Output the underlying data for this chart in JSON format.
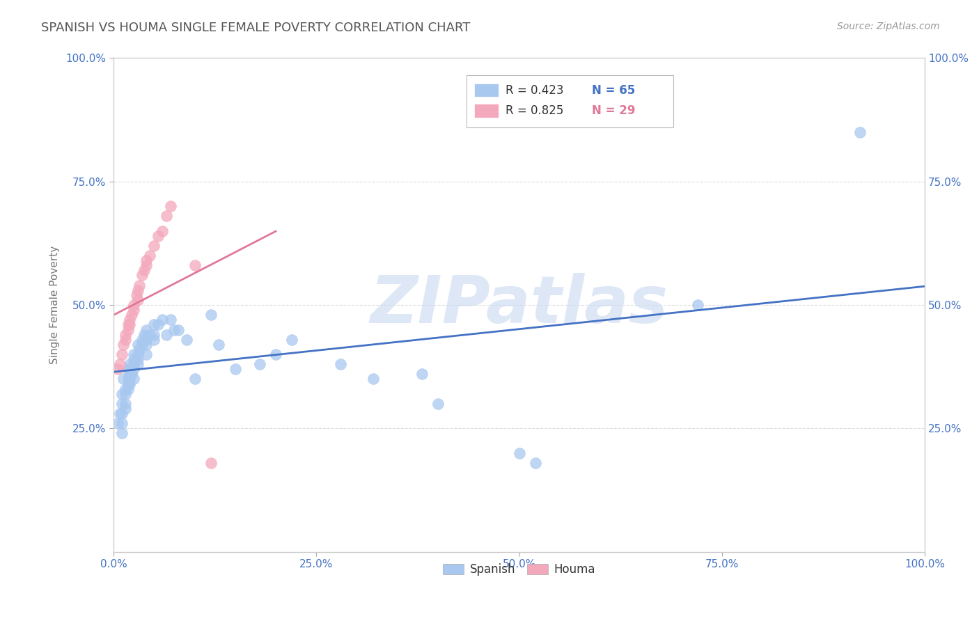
{
  "title": "SPANISH VS HOUMA SINGLE FEMALE POVERTY CORRELATION CHART",
  "source": "Source: ZipAtlas.com",
  "ylabel": "Single Female Poverty",
  "xlim": [
    0,
    1.0
  ],
  "ylim": [
    0,
    1.0
  ],
  "xticks": [
    0.0,
    0.25,
    0.5,
    0.75,
    1.0
  ],
  "yticks": [
    0.25,
    0.5,
    0.75,
    1.0
  ],
  "xtick_labels": [
    "0.0%",
    "25.0%",
    "50.0%",
    "75.0%",
    "100.0%"
  ],
  "ytick_labels": [
    "25.0%",
    "50.0%",
    "75.0%",
    "100.0%"
  ],
  "right_yticks": [
    0.0,
    0.25,
    0.5,
    0.75,
    1.0
  ],
  "right_ytick_labels": [
    "",
    "25.0%",
    "50.0%",
    "75.0%",
    "100.0%"
  ],
  "spanish_color": "#a8c8f0",
  "houma_color": "#f4a8bc",
  "spanish_line_color": "#4472c4",
  "houma_line_color": "#e07898",
  "watermark": "ZIPatlas",
  "watermark_color": "#c8d8f0",
  "legend_r_spanish": "R = 0.423",
  "legend_n_spanish": "N = 65",
  "legend_r_houma": "R = 0.825",
  "legend_n_houma": "N = 29",
  "spanish_x": [
    0.005,
    0.008,
    0.01,
    0.01,
    0.01,
    0.01,
    0.01,
    0.012,
    0.015,
    0.015,
    0.015,
    0.015,
    0.018,
    0.018,
    0.018,
    0.018,
    0.02,
    0.02,
    0.02,
    0.02,
    0.02,
    0.022,
    0.025,
    0.025,
    0.025,
    0.025,
    0.025,
    0.03,
    0.03,
    0.03,
    0.03,
    0.032,
    0.035,
    0.035,
    0.038,
    0.04,
    0.04,
    0.04,
    0.04,
    0.045,
    0.05,
    0.05,
    0.05,
    0.055,
    0.06,
    0.065,
    0.07,
    0.075,
    0.08,
    0.09,
    0.1,
    0.12,
    0.13,
    0.15,
    0.18,
    0.2,
    0.22,
    0.28,
    0.32,
    0.38,
    0.4,
    0.5,
    0.52,
    0.72,
    0.92
  ],
  "spanish_y": [
    0.26,
    0.28,
    0.32,
    0.3,
    0.28,
    0.26,
    0.24,
    0.35,
    0.33,
    0.32,
    0.3,
    0.29,
    0.37,
    0.35,
    0.34,
    0.33,
    0.38,
    0.37,
    0.36,
    0.35,
    0.34,
    0.36,
    0.4,
    0.39,
    0.38,
    0.37,
    0.35,
    0.42,
    0.4,
    0.39,
    0.38,
    0.41,
    0.43,
    0.42,
    0.44,
    0.45,
    0.43,
    0.42,
    0.4,
    0.44,
    0.46,
    0.44,
    0.43,
    0.46,
    0.47,
    0.44,
    0.47,
    0.45,
    0.45,
    0.43,
    0.35,
    0.48,
    0.42,
    0.37,
    0.38,
    0.4,
    0.43,
    0.38,
    0.35,
    0.36,
    0.3,
    0.2,
    0.18,
    0.5,
    0.85
  ],
  "houma_x": [
    0.005,
    0.008,
    0.01,
    0.012,
    0.015,
    0.015,
    0.018,
    0.018,
    0.02,
    0.02,
    0.022,
    0.025,
    0.025,
    0.028,
    0.03,
    0.03,
    0.032,
    0.035,
    0.038,
    0.04,
    0.04,
    0.045,
    0.05,
    0.055,
    0.06,
    0.065,
    0.07,
    0.1,
    0.12
  ],
  "houma_y": [
    0.37,
    0.38,
    0.4,
    0.42,
    0.44,
    0.43,
    0.46,
    0.45,
    0.47,
    0.46,
    0.48,
    0.5,
    0.49,
    0.52,
    0.53,
    0.51,
    0.54,
    0.56,
    0.57,
    0.59,
    0.58,
    0.6,
    0.62,
    0.64,
    0.65,
    0.68,
    0.7,
    0.58,
    0.18
  ],
  "background_color": "#ffffff",
  "grid_color": "#dddddd",
  "title_color": "#555555",
  "tick_label_color": "#4472c4"
}
